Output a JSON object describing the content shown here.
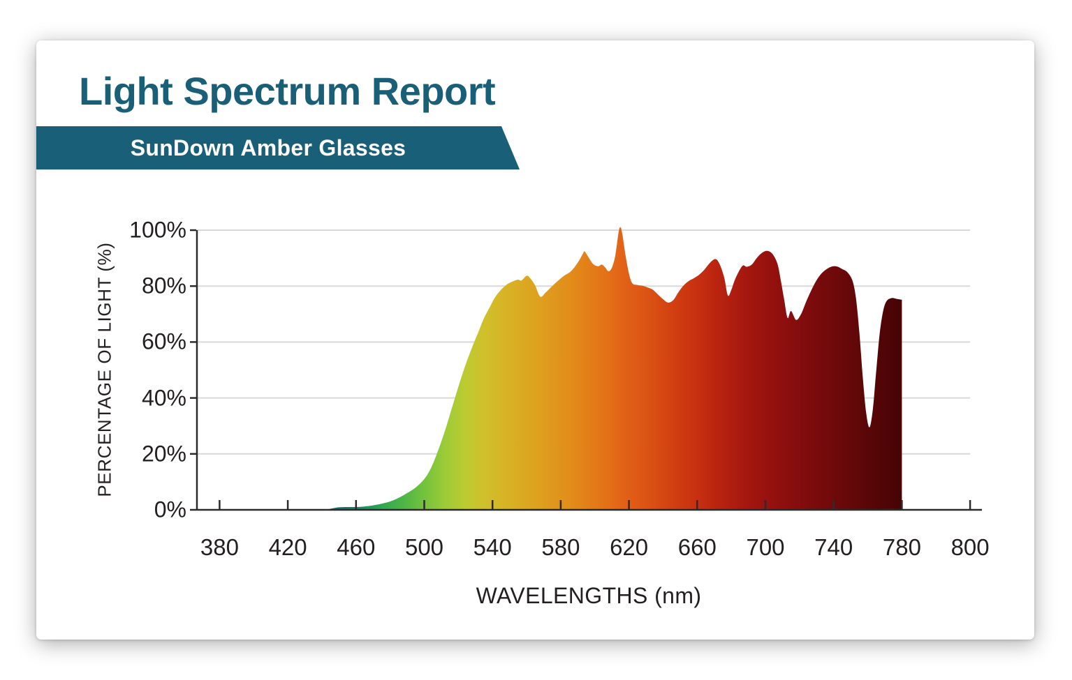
{
  "page": {
    "title": "Light Spectrum Report",
    "banner": "SunDown Amber Glasses"
  },
  "theme": {
    "accent_teal": "#1a5f78",
    "axis_color": "#2e2b2c",
    "gridline_color": "#d9d9d9",
    "text_color": "#231f20",
    "card_background": "#ffffff"
  },
  "chart_data": {
    "type": "area",
    "title": "Light Spectrum Report",
    "subtitle": "SunDown Amber Glasses",
    "xlabel": "WAVELENGTHS (nm)",
    "ylabel": "PERCENTAGE OF LIGHT (%)",
    "x_tick_labels": [
      "380",
      "420",
      "460",
      "500",
      "540",
      "580",
      "620",
      "660",
      "700",
      "740",
      "780",
      "800"
    ],
    "y_tick_labels": [
      "0%",
      "20%",
      "40%",
      "60%",
      "80%",
      "100%"
    ],
    "ylim": [
      0,
      100
    ],
    "x_range_nm": [
      380,
      800
    ],
    "grid": "horizontal",
    "legend": "none",
    "series": [
      {
        "name": "SunDown Amber Glasses light transmission",
        "units": {
          "x": "nm",
          "y": "%"
        },
        "points": [
          [
            442,
            0
          ],
          [
            446,
            0.5
          ],
          [
            450,
            0.9
          ],
          [
            455,
            1
          ],
          [
            460,
            1
          ],
          [
            465,
            1.2
          ],
          [
            470,
            1.6
          ],
          [
            475,
            2.2
          ],
          [
            480,
            3
          ],
          [
            485,
            4.3
          ],
          [
            490,
            6
          ],
          [
            495,
            8
          ],
          [
            500,
            11
          ],
          [
            504,
            15
          ],
          [
            508,
            21
          ],
          [
            512,
            28
          ],
          [
            516,
            36
          ],
          [
            520,
            44
          ],
          [
            524,
            51.5
          ],
          [
            528,
            58
          ],
          [
            532,
            64
          ],
          [
            535,
            68.5
          ],
          [
            538,
            72
          ],
          [
            541,
            75.5
          ],
          [
            544,
            78
          ],
          [
            548,
            80.4
          ],
          [
            552,
            81.7
          ],
          [
            555,
            82.3
          ],
          [
            557,
            82
          ],
          [
            560,
            83.7
          ],
          [
            562,
            82.9
          ],
          [
            565,
            80.2
          ],
          [
            568,
            76.2
          ],
          [
            571,
            77.6
          ],
          [
            574,
            79.4
          ],
          [
            578,
            81.7
          ],
          [
            582,
            83.7
          ],
          [
            586,
            85.3
          ],
          [
            590,
            88.4
          ],
          [
            593,
            91.6
          ],
          [
            594,
            92.4
          ],
          [
            596,
            90.6
          ],
          [
            599,
            87.9
          ],
          [
            602,
            87.1
          ],
          [
            604,
            87.7
          ],
          [
            606,
            86.7
          ],
          [
            608,
            85.3
          ],
          [
            610,
            86.6
          ],
          [
            612,
            91
          ],
          [
            614,
            99.5
          ],
          [
            615,
            101
          ],
          [
            616,
            99
          ],
          [
            618,
            91
          ],
          [
            620,
            84.5
          ],
          [
            622,
            81
          ],
          [
            625,
            80.4
          ],
          [
            628,
            80.1
          ],
          [
            631,
            79.5
          ],
          [
            634,
            78.7
          ],
          [
            637,
            77
          ],
          [
            640,
            75.3
          ],
          [
            643,
            74.1
          ],
          [
            646,
            75
          ],
          [
            649,
            77.8
          ],
          [
            652,
            80.2
          ],
          [
            655,
            81.8
          ],
          [
            658,
            82.8
          ],
          [
            661,
            84
          ],
          [
            664,
            85.7
          ],
          [
            667,
            88
          ],
          [
            670,
            89.6
          ],
          [
            672,
            89.1
          ],
          [
            674,
            86.6
          ],
          [
            676,
            82.6
          ],
          [
            678,
            76.6
          ],
          [
            680,
            78.6
          ],
          [
            682,
            82.1
          ],
          [
            685,
            85.9
          ],
          [
            687,
            87.4
          ],
          [
            689,
            86.9
          ],
          [
            692,
            87.7
          ],
          [
            695,
            90.1
          ],
          [
            698,
            91.9
          ],
          [
            701,
            92.6
          ],
          [
            704,
            91.6
          ],
          [
            707,
            88.1
          ],
          [
            709,
            82.1
          ],
          [
            711,
            75.1
          ],
          [
            713,
            68.6
          ],
          [
            715,
            71.1
          ],
          [
            718,
            67.9
          ],
          [
            721,
            70.1
          ],
          [
            724,
            74.6
          ],
          [
            727,
            78.6
          ],
          [
            730,
            82.1
          ],
          [
            733,
            84.6
          ],
          [
            736,
            86.1
          ],
          [
            739,
            87
          ],
          [
            742,
            87
          ],
          [
            745,
            86.1
          ],
          [
            748,
            85
          ],
          [
            751,
            82
          ],
          [
            753,
            76
          ],
          [
            755,
            64
          ],
          [
            757,
            48
          ],
          [
            759,
            35
          ],
          [
            761,
            29.5
          ],
          [
            763,
            36
          ],
          [
            765,
            50
          ],
          [
            767,
            63
          ],
          [
            769,
            71
          ],
          [
            771,
            74.6
          ],
          [
            774,
            75.7
          ],
          [
            777,
            75.4
          ],
          [
            780,
            75.1
          ]
        ]
      }
    ],
    "spectrum_gradient_stops": [
      {
        "nm": 440,
        "color": "#10596b"
      },
      {
        "nm": 456,
        "color": "#117a66"
      },
      {
        "nm": 466,
        "color": "#1d9559"
      },
      {
        "nm": 476,
        "color": "#31a94e"
      },
      {
        "nm": 488,
        "color": "#4fb646"
      },
      {
        "nm": 500,
        "color": "#74c23d"
      },
      {
        "nm": 512,
        "color": "#9ccb38"
      },
      {
        "nm": 524,
        "color": "#bccb31"
      },
      {
        "nm": 536,
        "color": "#d1bf2a"
      },
      {
        "nm": 550,
        "color": "#d8b124"
      },
      {
        "nm": 564,
        "color": "#dda31f"
      },
      {
        "nm": 578,
        "color": "#e0951c"
      },
      {
        "nm": 592,
        "color": "#e38419"
      },
      {
        "nm": 606,
        "color": "#e37217"
      },
      {
        "nm": 616,
        "color": "#e26318"
      },
      {
        "nm": 630,
        "color": "#db5414"
      },
      {
        "nm": 644,
        "color": "#d24211"
      },
      {
        "nm": 658,
        "color": "#c93210"
      },
      {
        "nm": 672,
        "color": "#b9240f"
      },
      {
        "nm": 686,
        "color": "#a8190f"
      },
      {
        "nm": 700,
        "color": "#98120e"
      },
      {
        "nm": 714,
        "color": "#8a0e0e"
      },
      {
        "nm": 728,
        "color": "#7b0b0c"
      },
      {
        "nm": 742,
        "color": "#6d090a"
      },
      {
        "nm": 756,
        "color": "#5e0708"
      },
      {
        "nm": 768,
        "color": "#520506"
      },
      {
        "nm": 780,
        "color": "#460405"
      }
    ]
  }
}
